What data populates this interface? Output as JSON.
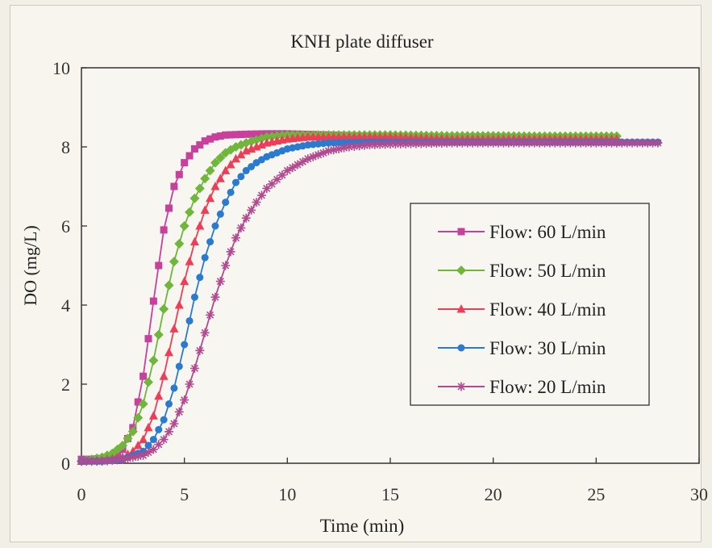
{
  "chart_data": {
    "type": "line",
    "title": "KNH plate diffuser",
    "xlabel": "Time (min)",
    "ylabel": "DO (mg/L)",
    "xlim": [
      0,
      30
    ],
    "ylim": [
      0,
      10
    ],
    "x_ticks": [
      "0",
      "5",
      "10",
      "15",
      "20",
      "25",
      "30"
    ],
    "y_ticks": [
      "0",
      "2",
      "4",
      "6",
      "8",
      "10"
    ],
    "grid": false,
    "legend_position": "center-right",
    "series": [
      {
        "name": "Flow: 60 L/min",
        "color": "#c8409b",
        "marker": "square",
        "points": [
          [
            0,
            0.1
          ],
          [
            0.5,
            0.1
          ],
          [
            1,
            0.12
          ],
          [
            1.5,
            0.18
          ],
          [
            2,
            0.35
          ],
          [
            2.5,
            0.9
          ],
          [
            3,
            2.2
          ],
          [
            3.5,
            4.1
          ],
          [
            4,
            5.9
          ],
          [
            4.5,
            7.0
          ],
          [
            5,
            7.6
          ],
          [
            5.5,
            7.95
          ],
          [
            6,
            8.15
          ],
          [
            6.5,
            8.25
          ],
          [
            7,
            8.3
          ],
          [
            8,
            8.32
          ],
          [
            9,
            8.33
          ],
          [
            10,
            8.33
          ],
          [
            12,
            8.3
          ],
          [
            15,
            8.25
          ],
          [
            18,
            8.2
          ],
          [
            20,
            8.15
          ],
          [
            22,
            8.15
          ],
          [
            24,
            8.15
          ],
          [
            26,
            8.12
          ]
        ]
      },
      {
        "name": "Flow: 50 L/min",
        "color": "#6fb63a",
        "marker": "diamond",
        "points": [
          [
            0,
            0.05
          ],
          [
            0.5,
            0.1
          ],
          [
            1,
            0.15
          ],
          [
            1.5,
            0.25
          ],
          [
            2,
            0.45
          ],
          [
            2.5,
            0.8
          ],
          [
            3,
            1.5
          ],
          [
            3.5,
            2.6
          ],
          [
            4,
            3.9
          ],
          [
            4.5,
            5.1
          ],
          [
            5,
            6.0
          ],
          [
            5.5,
            6.7
          ],
          [
            6,
            7.2
          ],
          [
            6.5,
            7.6
          ],
          [
            7,
            7.85
          ],
          [
            7.5,
            8.0
          ],
          [
            8,
            8.1
          ],
          [
            9,
            8.25
          ],
          [
            10,
            8.3
          ],
          [
            12,
            8.3
          ],
          [
            15,
            8.3
          ],
          [
            18,
            8.28
          ],
          [
            20,
            8.28
          ],
          [
            22,
            8.27
          ],
          [
            24,
            8.27
          ],
          [
            26,
            8.27
          ]
        ]
      },
      {
        "name": "Flow: 40 L/min",
        "color": "#ee3e57",
        "marker": "triangle",
        "points": [
          [
            0,
            0.05
          ],
          [
            1,
            0.08
          ],
          [
            2,
            0.15
          ],
          [
            2.5,
            0.3
          ],
          [
            3,
            0.6
          ],
          [
            3.5,
            1.2
          ],
          [
            4,
            2.2
          ],
          [
            4.5,
            3.4
          ],
          [
            5,
            4.6
          ],
          [
            5.5,
            5.6
          ],
          [
            6,
            6.4
          ],
          [
            6.5,
            7.0
          ],
          [
            7,
            7.4
          ],
          [
            7.5,
            7.7
          ],
          [
            8,
            7.9
          ],
          [
            9,
            8.1
          ],
          [
            10,
            8.2
          ],
          [
            11,
            8.25
          ],
          [
            12,
            8.25
          ],
          [
            15,
            8.25
          ],
          [
            18,
            8.2
          ],
          [
            20,
            8.2
          ],
          [
            22,
            8.2
          ],
          [
            24,
            8.2
          ],
          [
            26,
            8.2
          ]
        ]
      },
      {
        "name": "Flow: 30 L/min",
        "color": "#2a7bd0",
        "marker": "circle",
        "points": [
          [
            0,
            0.05
          ],
          [
            1,
            0.05
          ],
          [
            2,
            0.1
          ],
          [
            3,
            0.3
          ],
          [
            3.5,
            0.6
          ],
          [
            4,
            1.1
          ],
          [
            4.5,
            1.9
          ],
          [
            5,
            3.0
          ],
          [
            5.5,
            4.2
          ],
          [
            6,
            5.2
          ],
          [
            6.5,
            6.0
          ],
          [
            7,
            6.6
          ],
          [
            7.5,
            7.1
          ],
          [
            8,
            7.4
          ],
          [
            8.5,
            7.6
          ],
          [
            9,
            7.75
          ],
          [
            10,
            7.95
          ],
          [
            11,
            8.05
          ],
          [
            12,
            8.1
          ],
          [
            14,
            8.12
          ],
          [
            16,
            8.12
          ],
          [
            18,
            8.12
          ],
          [
            20,
            8.12
          ],
          [
            22,
            8.12
          ],
          [
            24,
            8.12
          ],
          [
            26,
            8.12
          ],
          [
            28,
            8.12
          ]
        ]
      },
      {
        "name": "Flow: 20 L/min",
        "color": "#b24a90",
        "marker": "star",
        "points": [
          [
            0,
            0.05
          ],
          [
            1,
            0.05
          ],
          [
            2,
            0.1
          ],
          [
            3,
            0.2
          ],
          [
            3.5,
            0.35
          ],
          [
            4,
            0.6
          ],
          [
            4.5,
            1.0
          ],
          [
            5,
            1.6
          ],
          [
            5.5,
            2.4
          ],
          [
            6,
            3.3
          ],
          [
            6.5,
            4.2
          ],
          [
            7,
            5.0
          ],
          [
            7.5,
            5.7
          ],
          [
            8,
            6.2
          ],
          [
            8.5,
            6.6
          ],
          [
            9,
            6.95
          ],
          [
            10,
            7.4
          ],
          [
            11,
            7.7
          ],
          [
            12,
            7.9
          ],
          [
            13,
            8.0
          ],
          [
            14,
            8.05
          ],
          [
            15,
            8.07
          ],
          [
            16,
            8.08
          ],
          [
            18,
            8.1
          ],
          [
            20,
            8.1
          ],
          [
            22,
            8.1
          ],
          [
            24,
            8.1
          ],
          [
            26,
            8.1
          ],
          [
            28,
            8.1
          ]
        ]
      }
    ]
  }
}
